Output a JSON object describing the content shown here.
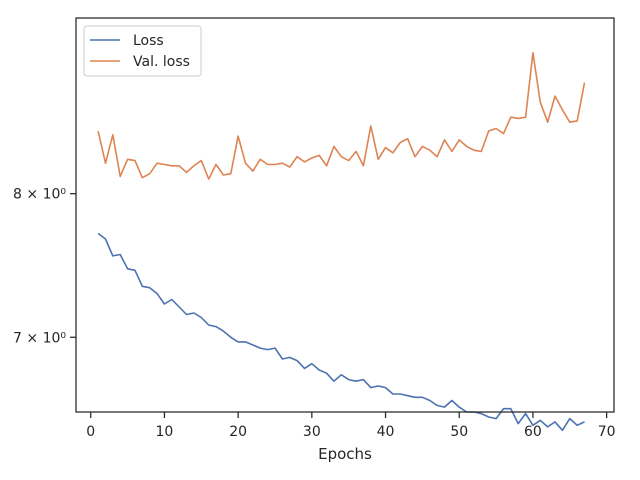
{
  "chart_data": {
    "type": "line",
    "xlabel": "Epochs",
    "ylabel": "",
    "yscale": "log",
    "xlim": [
      -2,
      71
    ],
    "ylim": [
      6.53,
      9.42
    ],
    "xticks": [
      0,
      10,
      20,
      30,
      40,
      50,
      60,
      70
    ],
    "yticks": [
      {
        "value": 7,
        "label": "7 × 10⁰"
      },
      {
        "value": 8,
        "label": "8 × 10⁰"
      }
    ],
    "grid": false,
    "legend_position": "top-left",
    "x": [
      1,
      2,
      3,
      4,
      5,
      6,
      7,
      8,
      9,
      10,
      11,
      12,
      13,
      14,
      15,
      16,
      17,
      18,
      19,
      20,
      21,
      22,
      23,
      24,
      25,
      26,
      27,
      28,
      29,
      30,
      31,
      32,
      33,
      34,
      35,
      36,
      37,
      38,
      39,
      40,
      41,
      42,
      43,
      44,
      45,
      46,
      47,
      48,
      49,
      50,
      51,
      52,
      53,
      54,
      55,
      56,
      57,
      58,
      59,
      60,
      61,
      62,
      63,
      64,
      65,
      66,
      67
    ],
    "series": [
      {
        "name": "Loss",
        "color": "#4c72b0",
        "values": [
          7.71,
          7.67,
          7.55,
          7.56,
          7.46,
          7.45,
          7.34,
          7.33,
          7.29,
          7.22,
          7.25,
          7.2,
          7.15,
          7.16,
          7.13,
          7.08,
          7.07,
          7.04,
          7.0,
          6.97,
          6.97,
          6.95,
          6.93,
          6.92,
          6.93,
          6.86,
          6.87,
          6.85,
          6.8,
          6.83,
          6.79,
          6.77,
          6.72,
          6.76,
          6.73,
          6.72,
          6.73,
          6.68,
          6.69,
          6.68,
          6.64,
          6.64,
          6.63,
          6.62,
          6.62,
          6.6,
          6.57,
          6.56,
          6.6,
          6.56,
          6.53,
          6.53,
          6.52,
          6.5,
          6.49,
          6.55,
          6.55,
          6.46,
          6.52,
          6.45,
          6.48,
          6.44,
          6.47,
          6.42,
          6.49,
          6.45,
          6.47
        ]
      },
      {
        "name": "Val. loss",
        "color": "#dd8452",
        "values": [
          8.48,
          8.23,
          8.45,
          8.13,
          8.26,
          8.25,
          8.12,
          8.15,
          8.23,
          8.22,
          8.21,
          8.21,
          8.16,
          8.21,
          8.25,
          8.11,
          8.22,
          8.14,
          8.15,
          8.44,
          8.23,
          8.17,
          8.26,
          8.22,
          8.22,
          8.23,
          8.2,
          8.28,
          8.24,
          8.27,
          8.29,
          8.21,
          8.36,
          8.28,
          8.25,
          8.32,
          8.21,
          8.52,
          8.26,
          8.35,
          8.31,
          8.39,
          8.42,
          8.28,
          8.36,
          8.33,
          8.28,
          8.41,
          8.32,
          8.41,
          8.36,
          8.33,
          8.32,
          8.48,
          8.5,
          8.46,
          8.59,
          8.58,
          8.59,
          9.12,
          8.71,
          8.55,
          8.76,
          8.65,
          8.55,
          8.56,
          8.87
        ]
      }
    ]
  }
}
